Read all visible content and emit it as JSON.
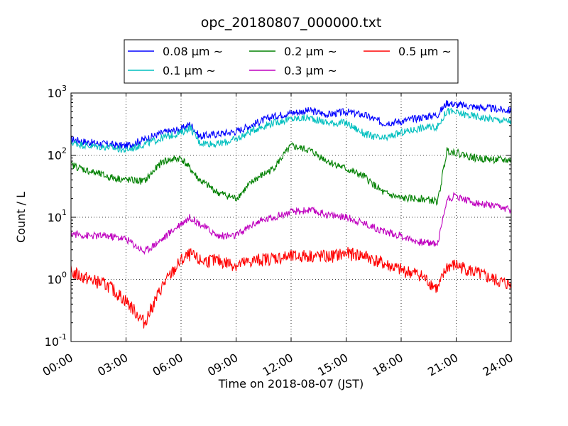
{
  "chart_data": {
    "type": "line",
    "title": "opc_20180807_000000.txt",
    "xlabel": "Time on 2018-08-07 (JST)",
    "ylabel": "Count / L",
    "yscale": "log",
    "ylim": [
      0.1,
      1000
    ],
    "xlim": [
      "00:00",
      "24:00"
    ],
    "grid": true,
    "legend_position": "top-center",
    "x_ticks": [
      "00:00",
      "03:00",
      "06:00",
      "09:00",
      "12:00",
      "15:00",
      "18:00",
      "21:00",
      "24:00"
    ],
    "y_ticks": [
      {
        "base": "10",
        "exp": "-1",
        "value": 0.1
      },
      {
        "base": "10",
        "exp": "0",
        "value": 1
      },
      {
        "base": "10",
        "exp": "1",
        "value": 10
      },
      {
        "base": "10",
        "exp": "2",
        "value": 100
      },
      {
        "base": "10",
        "exp": "3",
        "value": 1000
      }
    ],
    "x_hours": [
      0,
      1,
      2,
      3,
      4,
      5,
      6,
      6.5,
      7,
      8,
      9,
      10,
      11,
      12,
      13,
      14,
      15,
      16,
      17,
      18,
      19,
      20,
      20.5,
      21,
      22,
      23,
      24
    ],
    "series": [
      {
        "name": "0.08 μm ~",
        "color": "#0000ff",
        "values": [
          180,
          160,
          150,
          140,
          180,
          230,
          260,
          320,
          200,
          220,
          240,
          320,
          420,
          480,
          520,
          450,
          500,
          440,
          330,
          350,
          400,
          450,
          700,
          650,
          600,
          560,
          520
        ]
      },
      {
        "name": "0.1 μm ~",
        "color": "#00bfbf",
        "values": [
          160,
          140,
          135,
          120,
          150,
          190,
          230,
          280,
          160,
          150,
          180,
          260,
          330,
          380,
          400,
          330,
          330,
          220,
          180,
          230,
          270,
          290,
          520,
          480,
          420,
          380,
          350
        ]
      },
      {
        "name": "0.2 μm ~",
        "color": "#008000",
        "values": [
          70,
          55,
          45,
          40,
          38,
          80,
          90,
          60,
          40,
          25,
          20,
          40,
          60,
          140,
          120,
          80,
          60,
          45,
          25,
          20,
          20,
          18,
          120,
          110,
          90,
          85,
          82
        ]
      },
      {
        "name": "0.3 μm ~",
        "color": "#bf00bf",
        "values": [
          5.5,
          5,
          5,
          4.5,
          2.8,
          4.5,
          8,
          10,
          8,
          5,
          5,
          8,
          10,
          12,
          13,
          11,
          10,
          8,
          6,
          5,
          4,
          3.8,
          20,
          22,
          17,
          15,
          13
        ]
      },
      {
        "name": "0.5 μm ~",
        "color": "#ff0000",
        "values": [
          1.3,
          1.0,
          0.8,
          0.45,
          0.2,
          0.8,
          2.0,
          2.5,
          2.0,
          2.0,
          1.7,
          2.0,
          2.2,
          2.3,
          2.4,
          2.3,
          2.6,
          2.4,
          1.8,
          1.4,
          1.2,
          0.7,
          1.6,
          1.7,
          1.3,
          1.0,
          0.8
        ]
      }
    ]
  }
}
